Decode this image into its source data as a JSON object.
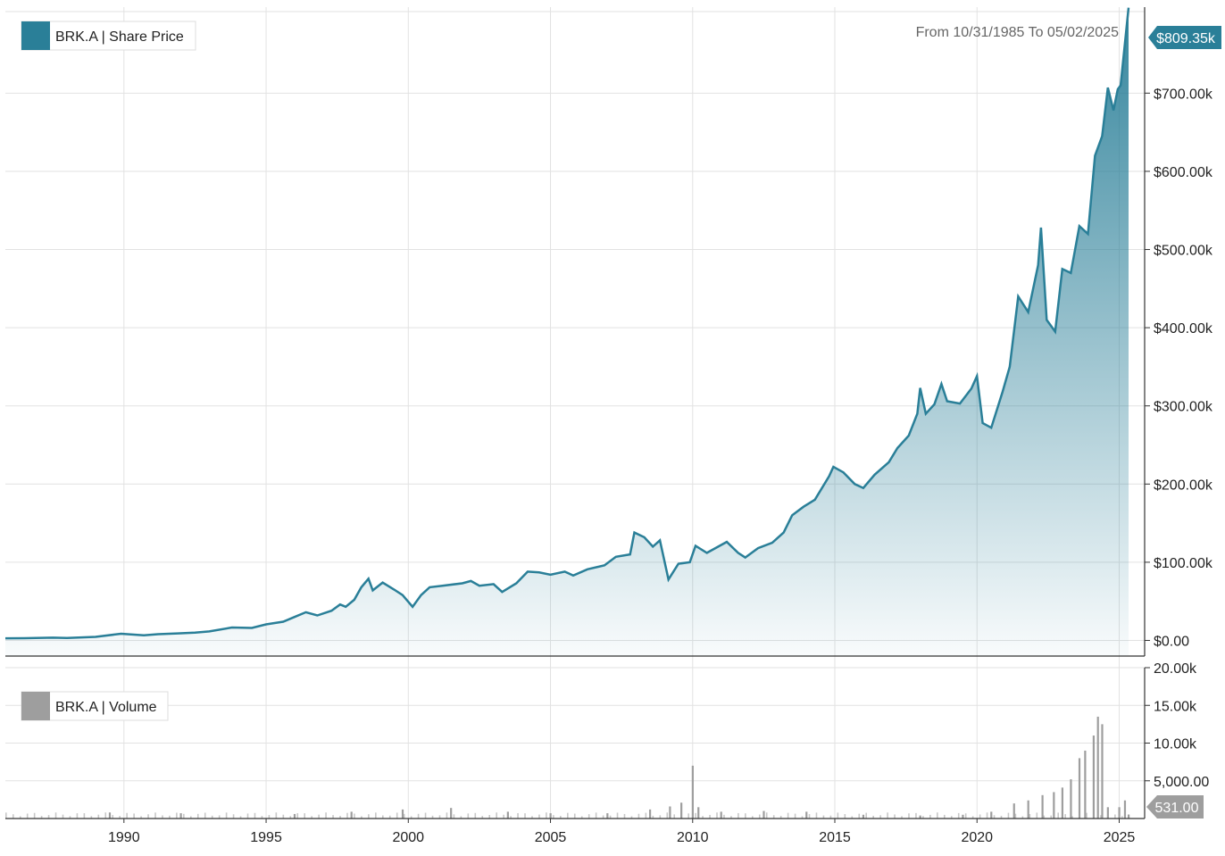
{
  "range_label": "From 10/31/1985 To 05/02/2025",
  "colors": {
    "price": "#2a7f98",
    "volume": "#9e9e9e",
    "grid": "#e2e2e2",
    "axis": "#333333",
    "vol_tag": "#9e9e9e"
  },
  "chart_data": [
    {
      "type": "area",
      "legend": "BRK.A | Share Price",
      "last_value_label": "$809.35k",
      "x_range": [
        1985.83,
        2025.33
      ],
      "ylim": [
        -20000,
        810000
      ],
      "y_ticks": [
        0,
        100000,
        200000,
        300000,
        400000,
        500000,
        600000,
        700000
      ],
      "y_tick_labels": [
        "$0.00",
        "$100.00k",
        "$200.00k",
        "$300.00k",
        "$400.00k",
        "$500.00k",
        "$600.00k",
        "$700.00k"
      ],
      "x_ticks": [
        1990,
        1995,
        2000,
        2005,
        2010,
        2015,
        2020,
        2025
      ],
      "x_tick_labels": [
        "1990",
        "1995",
        "2000",
        "2005",
        "2010",
        "2015",
        "2020",
        "2025"
      ],
      "grid": true,
      "legend_position": "top-left",
      "points": [
        [
          1985.83,
          2700
        ],
        [
          1986.5,
          2800
        ],
        [
          1987.5,
          3500
        ],
        [
          1988.0,
          3200
        ],
        [
          1989.0,
          4500
        ],
        [
          1989.9,
          8500
        ],
        [
          1990.7,
          6500
        ],
        [
          1991.2,
          8000
        ],
        [
          1991.9,
          9000
        ],
        [
          1992.5,
          10000
        ],
        [
          1993.0,
          11500
        ],
        [
          1993.8,
          16500
        ],
        [
          1994.5,
          16000
        ],
        [
          1995.0,
          20500
        ],
        [
          1995.6,
          24000
        ],
        [
          1996.0,
          30000
        ],
        [
          1996.4,
          36000
        ],
        [
          1996.8,
          32000
        ],
        [
          1997.3,
          38000
        ],
        [
          1997.6,
          46000
        ],
        [
          1997.8,
          43000
        ],
        [
          1998.1,
          52000
        ],
        [
          1998.35,
          68000
        ],
        [
          1998.6,
          79000
        ],
        [
          1998.75,
          64000
        ],
        [
          1999.1,
          74000
        ],
        [
          1999.5,
          65000
        ],
        [
          1999.8,
          58000
        ],
        [
          2000.15,
          43000
        ],
        [
          2000.45,
          58000
        ],
        [
          2000.75,
          68000
        ],
        [
          2001.2,
          70000
        ],
        [
          2001.9,
          73000
        ],
        [
          2002.2,
          76000
        ],
        [
          2002.5,
          70000
        ],
        [
          2003.0,
          72000
        ],
        [
          2003.3,
          62000
        ],
        [
          2003.8,
          73000
        ],
        [
          2004.2,
          88000
        ],
        [
          2004.6,
          87000
        ],
        [
          2005.0,
          84000
        ],
        [
          2005.5,
          88000
        ],
        [
          2005.8,
          83000
        ],
        [
          2006.3,
          91000
        ],
        [
          2006.9,
          96000
        ],
        [
          2007.3,
          107000
        ],
        [
          2007.8,
          110000
        ],
        [
          2007.95,
          138000
        ],
        [
          2008.3,
          132000
        ],
        [
          2008.6,
          120000
        ],
        [
          2008.85,
          128000
        ],
        [
          2009.15,
          78000
        ],
        [
          2009.5,
          98000
        ],
        [
          2009.9,
          100000
        ],
        [
          2010.1,
          121000
        ],
        [
          2010.5,
          112000
        ],
        [
          2010.9,
          120000
        ],
        [
          2011.2,
          126000
        ],
        [
          2011.6,
          112000
        ],
        [
          2011.85,
          106000
        ],
        [
          2012.3,
          118000
        ],
        [
          2012.8,
          125000
        ],
        [
          2013.2,
          138000
        ],
        [
          2013.5,
          160000
        ],
        [
          2013.9,
          171000
        ],
        [
          2014.3,
          180000
        ],
        [
          2014.8,
          210000
        ],
        [
          2014.95,
          222000
        ],
        [
          2015.3,
          215000
        ],
        [
          2015.7,
          200000
        ],
        [
          2016.0,
          195000
        ],
        [
          2016.4,
          212000
        ],
        [
          2016.9,
          228000
        ],
        [
          2017.2,
          246000
        ],
        [
          2017.6,
          262000
        ],
        [
          2017.9,
          290000
        ],
        [
          2018.0,
          323000
        ],
        [
          2018.2,
          290000
        ],
        [
          2018.5,
          302000
        ],
        [
          2018.75,
          328000
        ],
        [
          2018.95,
          306000
        ],
        [
          2019.4,
          303000
        ],
        [
          2019.8,
          322000
        ],
        [
          2020.0,
          338000
        ],
        [
          2020.2,
          278000
        ],
        [
          2020.5,
          272000
        ],
        [
          2020.9,
          318000
        ],
        [
          2021.15,
          350000
        ],
        [
          2021.45,
          440000
        ],
        [
          2021.8,
          420000
        ],
        [
          2022.15,
          480000
        ],
        [
          2022.25,
          528000
        ],
        [
          2022.45,
          410000
        ],
        [
          2022.75,
          395000
        ],
        [
          2023.0,
          475000
        ],
        [
          2023.3,
          470000
        ],
        [
          2023.6,
          530000
        ],
        [
          2023.9,
          520000
        ],
        [
          2024.15,
          620000
        ],
        [
          2024.4,
          645000
        ],
        [
          2024.6,
          707000
        ],
        [
          2024.8,
          678000
        ],
        [
          2024.95,
          705000
        ],
        [
          2025.05,
          710000
        ],
        [
          2025.33,
          809350
        ]
      ]
    },
    {
      "type": "bar",
      "legend": "BRK.A | Volume",
      "last_value_label": "531.00",
      "x_range": [
        1985.83,
        2025.33
      ],
      "ylim": [
        0,
        20000
      ],
      "y_ticks": [
        5000,
        10000,
        15000,
        20000
      ],
      "y_tick_labels": [
        "5,000.00",
        "10.00k",
        "15.00k",
        "20.00k"
      ],
      "grid": true,
      "legend_position": "top-left",
      "points": [
        [
          1989.5,
          800
        ],
        [
          1992.0,
          700
        ],
        [
          1996.0,
          600
        ],
        [
          1998.0,
          900
        ],
        [
          1999.8,
          1200
        ],
        [
          2001.5,
          1400
        ],
        [
          2003.5,
          900
        ],
        [
          2005.0,
          700
        ],
        [
          2007.0,
          700
        ],
        [
          2008.5,
          1200
        ],
        [
          2009.2,
          1600
        ],
        [
          2009.6,
          2100
        ],
        [
          2010.0,
          7000
        ],
        [
          2010.2,
          1500
        ],
        [
          2011.0,
          900
        ],
        [
          2012.5,
          1000
        ],
        [
          2014.0,
          900
        ],
        [
          2016.0,
          500
        ],
        [
          2018.0,
          400
        ],
        [
          2019.5,
          500
        ],
        [
          2020.5,
          900
        ],
        [
          2021.3,
          2000
        ],
        [
          2021.8,
          2400
        ],
        [
          2022.3,
          3100
        ],
        [
          2022.7,
          3500
        ],
        [
          2023.0,
          4100
        ],
        [
          2023.3,
          5200
        ],
        [
          2023.6,
          8000
        ],
        [
          2023.8,
          9000
        ],
        [
          2024.1,
          11000
        ],
        [
          2024.25,
          13500
        ],
        [
          2024.4,
          12500
        ],
        [
          2024.6,
          1500
        ],
        [
          2025.0,
          1500
        ],
        [
          2025.2,
          2400
        ],
        [
          2025.33,
          531
        ]
      ]
    }
  ]
}
